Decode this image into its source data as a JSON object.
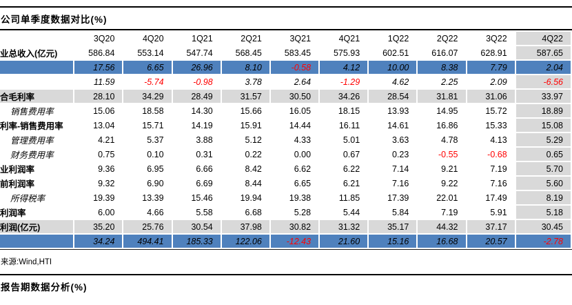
{
  "quarterly_table": {
    "title": "公司单季度数据对比(%)",
    "columns": [
      "3Q20",
      "4Q20",
      "1Q21",
      "2Q21",
      "3Q21",
      "4Q21",
      "1Q22",
      "2Q22",
      "3Q22",
      "4Q22"
    ],
    "rows": [
      {
        "label": "业总收入(亿元)",
        "style": "bold",
        "bg": "white",
        "values": [
          "586.84",
          "553.14",
          "547.74",
          "568.45",
          "583.45",
          "575.93",
          "602.51",
          "616.07",
          "628.91",
          "587.65"
        ]
      },
      {
        "label": "",
        "style": "italic",
        "bg": "blue",
        "values": [
          "17.56",
          "6.65",
          "26.96",
          "8.10",
          "-0.58",
          "4.12",
          "10.00",
          "8.38",
          "7.79",
          "2.04"
        ]
      },
      {
        "label": "",
        "style": "italic",
        "bg": "white",
        "values": [
          "11.59",
          "-5.74",
          "-0.98",
          "3.78",
          "2.64",
          "-1.29",
          "4.62",
          "2.25",
          "2.09",
          "-6.56"
        ]
      },
      {
        "label": "合毛利率",
        "style": "bold",
        "bg": "gray",
        "values": [
          "28.10",
          "34.29",
          "28.49",
          "31.57",
          "30.50",
          "34.26",
          "28.54",
          "31.81",
          "31.06",
          "33.97"
        ]
      },
      {
        "label": "销售费用率",
        "style": "sub",
        "bg": "white",
        "values": [
          "15.06",
          "18.58",
          "14.30",
          "15.66",
          "16.05",
          "18.15",
          "13.93",
          "14.95",
          "15.72",
          "18.89"
        ]
      },
      {
        "label": "利率-销售费用率",
        "style": "bold",
        "bg": "white",
        "values": [
          "13.04",
          "15.71",
          "14.19",
          "15.91",
          "14.44",
          "16.11",
          "14.61",
          "16.86",
          "15.33",
          "15.08"
        ]
      },
      {
        "label": "管理费用率",
        "style": "sub",
        "bg": "white",
        "values": [
          "4.21",
          "5.37",
          "3.88",
          "5.12",
          "4.33",
          "5.01",
          "3.63",
          "4.78",
          "4.13",
          "5.29"
        ]
      },
      {
        "label": "财务费用率",
        "style": "sub",
        "bg": "white",
        "values": [
          "0.75",
          "0.10",
          "0.31",
          "0.22",
          "0.00",
          "0.67",
          "0.23",
          "-0.55",
          "-0.68",
          "0.65"
        ]
      },
      {
        "label": "业利润率",
        "style": "bold",
        "bg": "white",
        "values": [
          "9.36",
          "6.95",
          "6.66",
          "8.42",
          "6.62",
          "6.22",
          "7.14",
          "9.21",
          "7.19",
          "5.70"
        ]
      },
      {
        "label": "前利润率",
        "style": "bold",
        "bg": "white",
        "values": [
          "9.32",
          "6.90",
          "6.69",
          "8.44",
          "6.65",
          "6.21",
          "7.16",
          "9.22",
          "7.16",
          "5.60"
        ]
      },
      {
        "label": "所得税率",
        "style": "sub",
        "bg": "white",
        "values": [
          "19.39",
          "13.39",
          "15.46",
          "19.94",
          "19.38",
          "11.85",
          "17.39",
          "22.01",
          "17.49",
          "8.19"
        ]
      },
      {
        "label": "利润率",
        "style": "bold",
        "bg": "white",
        "values": [
          "6.00",
          "4.66",
          "5.58",
          "6.68",
          "5.28",
          "5.44",
          "5.84",
          "7.19",
          "5.91",
          "5.18"
        ]
      },
      {
        "label": "利润(亿元)",
        "style": "bold",
        "bg": "gray",
        "values": [
          "35.20",
          "25.76",
          "30.54",
          "37.98",
          "30.82",
          "31.32",
          "35.17",
          "44.32",
          "37.17",
          "30.45"
        ]
      },
      {
        "label": "",
        "style": "italic",
        "bg": "blue",
        "values": [
          "34.24",
          "494.41",
          "185.33",
          "122.06",
          "-12.43",
          "21.60",
          "15.16",
          "16.68",
          "20.57",
          "-2.78"
        ]
      }
    ],
    "source": "来源:Wind,HTI"
  },
  "bottom_section": {
    "title": "报告期数据分析(%)"
  },
  "colors": {
    "accent_blue": "#4f81bd",
    "band_gray": "#d9d9d9",
    "negative_red": "#ff0000"
  }
}
